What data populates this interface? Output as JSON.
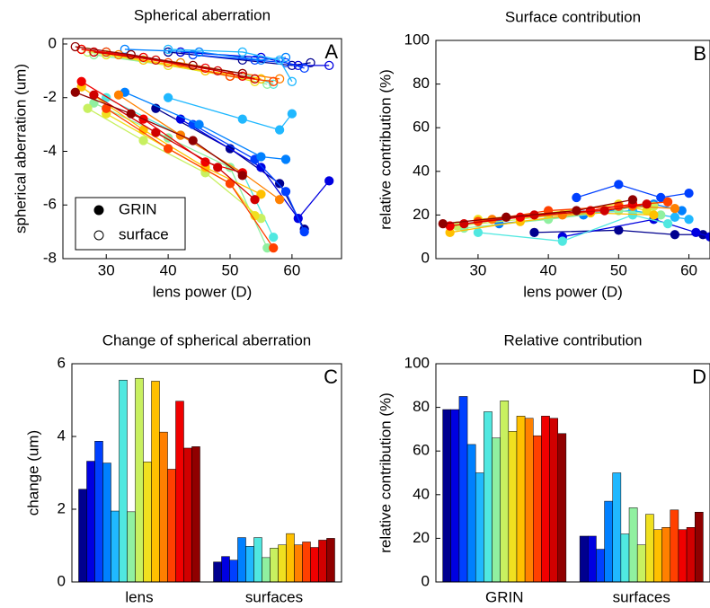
{
  "chart_data": [
    {
      "type": "line",
      "panel_label": "A",
      "title": "Spherical aberration",
      "xlabel": "lens power (D)",
      "ylabel": "spherical aberration (um)",
      "xlim": [
        23,
        68
      ],
      "xticks": [
        30,
        40,
        50,
        60
      ],
      "ylim": [
        -8,
        0.2
      ],
      "yticks": [
        -8,
        -6,
        -4,
        -2,
        0
      ],
      "legend": "lower left",
      "groups": [
        {
          "name": "GRIN",
          "marker": "filled",
          "series": [
            {
              "color": "#00008f",
              "x": [
                38,
                50,
                58,
                62
              ],
              "values": [
                -2.4,
                -3.9,
                -5.2,
                -6.9
              ]
            },
            {
              "color": "#0000e0",
              "x": [
                42,
                55,
                61,
                66
              ],
              "values": [
                -2.8,
                -4.6,
                -6.5,
                -5.1
              ]
            },
            {
              "color": "#0040ff",
              "x": [
                44,
                54,
                59,
                62
              ],
              "values": [
                -3.0,
                -4.3,
                -5.5,
                -7.0
              ]
            },
            {
              "color": "#0080ff",
              "x": [
                33,
                45,
                55,
                59
              ],
              "values": [
                -1.8,
                -3.0,
                -4.2,
                -4.3
              ]
            },
            {
              "color": "#20b8ff",
              "x": [
                40,
                52,
                58,
                60
              ],
              "values": [
                -2.0,
                -2.8,
                -3.2,
                -2.6
              ]
            },
            {
              "color": "#50e8e0",
              "x": [
                30,
                42,
                52,
                57
              ],
              "values": [
                -2.0,
                -3.4,
                -4.8,
                -7.2
              ]
            },
            {
              "color": "#90f0a0",
              "x": [
                28,
                40,
                50,
                56
              ],
              "values": [
                -2.2,
                -3.5,
                -4.6,
                -7.6
              ]
            },
            {
              "color": "#c8f060",
              "x": [
                27,
                36,
                46,
                55
              ],
              "values": [
                -2.4,
                -3.6,
                -4.8,
                -6.5
              ]
            },
            {
              "color": "#f0e020",
              "x": [
                30,
                40,
                50,
                54
              ],
              "values": [
                -2.6,
                -3.9,
                -5.2,
                -6.4
              ]
            },
            {
              "color": "#ffc000",
              "x": [
                26,
                36,
                46,
                55
              ],
              "values": [
                -1.6,
                -3.2,
                -4.6,
                -5.6
              ]
            },
            {
              "color": "#ff8000",
              "x": [
                32,
                42,
                52,
                58
              ],
              "values": [
                -1.9,
                -3.4,
                -4.8,
                -5.8
              ]
            },
            {
              "color": "#ff4000",
              "x": [
                30,
                40,
                50,
                57
              ],
              "values": [
                -2.4,
                -3.9,
                -5.2,
                -7.6
              ]
            },
            {
              "color": "#f00000",
              "x": [
                26,
                36,
                46,
                52
              ],
              "values": [
                -1.4,
                -2.8,
                -4.4,
                -4.8
              ]
            },
            {
              "color": "#d00000",
              "x": [
                28,
                38,
                48,
                54
              ],
              "values": [
                -1.9,
                -3.3,
                -4.6,
                -5.8
              ]
            },
            {
              "color": "#900000",
              "x": [
                25,
                34,
                44,
                52
              ],
              "values": [
                -1.8,
                -2.6,
                -3.6,
                -4.9
              ]
            }
          ]
        },
        {
          "name": "surface",
          "marker": "open",
          "series": [
            {
              "color": "#00008f",
              "x": [
                40,
                52,
                60,
                63
              ],
              "values": [
                -0.3,
                -0.6,
                -0.8,
                -0.7
              ]
            },
            {
              "color": "#0000e0",
              "x": [
                42,
                55,
                61,
                66
              ],
              "values": [
                -0.3,
                -0.5,
                -0.8,
                -0.8
              ]
            },
            {
              "color": "#0040ff",
              "x": [
                44,
                54,
                59,
                62
              ],
              "values": [
                -0.4,
                -0.6,
                -0.7,
                -0.9
              ]
            },
            {
              "color": "#0080ff",
              "x": [
                33,
                45,
                55,
                59
              ],
              "values": [
                -0.2,
                -0.3,
                -0.6,
                -0.5
              ]
            },
            {
              "color": "#20b8ff",
              "x": [
                40,
                52,
                58,
                60
              ],
              "values": [
                -0.2,
                -0.3,
                -0.6,
                -1.4
              ]
            },
            {
              "color": "#50e8e0",
              "x": [
                30,
                42,
                52,
                57
              ],
              "values": [
                -0.3,
                -0.7,
                -1.1,
                -1.5
              ]
            },
            {
              "color": "#90f0a0",
              "x": [
                28,
                40,
                50,
                56
              ],
              "values": [
                -0.4,
                -0.8,
                -1.2,
                -1.5
              ]
            },
            {
              "color": "#c8f060",
              "x": [
                27,
                36,
                46,
                55
              ],
              "values": [
                -0.3,
                -0.6,
                -1.0,
                -1.3
              ]
            },
            {
              "color": "#f0e020",
              "x": [
                30,
                40,
                50,
                54
              ],
              "values": [
                -0.4,
                -0.8,
                -1.2,
                -1.4
              ]
            },
            {
              "color": "#ffc000",
              "x": [
                26,
                36,
                46,
                55
              ],
              "values": [
                -0.2,
                -0.6,
                -1.0,
                -1.3
              ]
            },
            {
              "color": "#ff8000",
              "x": [
                32,
                42,
                52,
                58
              ],
              "values": [
                -0.4,
                -0.7,
                -1.1,
                -1.3
              ]
            },
            {
              "color": "#ff4000",
              "x": [
                30,
                40,
                50,
                57
              ],
              "values": [
                -0.3,
                -0.7,
                -1.2,
                -1.4
              ]
            },
            {
              "color": "#f00000",
              "x": [
                26,
                36,
                46,
                52
              ],
              "values": [
                -0.2,
                -0.5,
                -0.9,
                -1.2
              ]
            },
            {
              "color": "#d00000",
              "x": [
                28,
                38,
                48,
                54
              ],
              "values": [
                -0.3,
                -0.6,
                -1.0,
                -1.3
              ]
            },
            {
              "color": "#900000",
              "x": [
                25,
                34,
                44,
                52
              ],
              "values": [
                -0.1,
                -0.4,
                -0.8,
                -1.1
              ]
            }
          ]
        }
      ]
    },
    {
      "type": "line",
      "panel_label": "B",
      "title": "Surface contribution",
      "xlabel": "lens power (D)",
      "ylabel": "relative contribution (%)",
      "xlim": [
        24,
        63
      ],
      "xticks": [
        30,
        40,
        50,
        60
      ],
      "ylim": [
        0,
        100
      ],
      "yticks": [
        0,
        20,
        40,
        60,
        80,
        100
      ],
      "groups": [
        {
          "marker": "filled",
          "series": [
            {
              "color": "#00008f",
              "x": [
                38,
                50,
                58,
                62
              ],
              "values": [
                12,
                13,
                11,
                11
              ]
            },
            {
              "color": "#0000e0",
              "x": [
                42,
                55,
                61,
                63
              ],
              "values": [
                10,
                18,
                12,
                10
              ]
            },
            {
              "color": "#0040ff",
              "x": [
                44,
                50,
                56,
                60
              ],
              "values": [
                28,
                34,
                28,
                30
              ]
            },
            {
              "color": "#0080ff",
              "x": [
                33,
                45,
                55,
                59
              ],
              "values": [
                16,
                20,
                25,
                22
              ]
            },
            {
              "color": "#20b8ff",
              "x": [
                40,
                52,
                58,
                60
              ],
              "values": [
                20,
                22,
                19,
                18
              ]
            },
            {
              "color": "#50e8e0",
              "x": [
                30,
                42,
                52,
                57
              ],
              "values": [
                12,
                8,
                20,
                16
              ]
            },
            {
              "color": "#90f0a0",
              "x": [
                28,
                40,
                50,
                56
              ],
              "values": [
                14,
                18,
                22,
                20
              ]
            },
            {
              "color": "#c8f060",
              "x": [
                27,
                36,
                46,
                55
              ],
              "values": [
                15,
                18,
                22,
                24
              ]
            },
            {
              "color": "#f0e020",
              "x": [
                30,
                40,
                50,
                54
              ],
              "values": [
                18,
                21,
                25,
                22
              ]
            },
            {
              "color": "#ffc000",
              "x": [
                26,
                36,
                46,
                55
              ],
              "values": [
                12,
                17,
                21,
                20
              ]
            },
            {
              "color": "#ff8000",
              "x": [
                32,
                42,
                52,
                58
              ],
              "values": [
                18,
                20,
                24,
                23
              ]
            },
            {
              "color": "#ff4000",
              "x": [
                30,
                40,
                50,
                57
              ],
              "values": [
                17,
                22,
                24,
                26
              ]
            },
            {
              "color": "#f00000",
              "x": [
                26,
                36,
                46,
                52
              ],
              "values": [
                15,
                19,
                22,
                25
              ]
            },
            {
              "color": "#d00000",
              "x": [
                28,
                38,
                48,
                54
              ],
              "values": [
                16,
                20,
                22,
                25
              ]
            },
            {
              "color": "#900000",
              "x": [
                25,
                34,
                44,
                52
              ],
              "values": [
                16,
                19,
                22,
                27
              ]
            }
          ]
        }
      ]
    },
    {
      "type": "bar",
      "panel_label": "C",
      "title": "Change of spherical aberration",
      "ylabel": "change (um)",
      "categories": [
        "lens",
        "surfaces"
      ],
      "ylim": [
        0,
        6
      ],
      "yticks": [
        0,
        2,
        4,
        6
      ],
      "series": [
        {
          "color": "#00008f",
          "values": [
            2.55,
            0.55
          ]
        },
        {
          "color": "#0000e0",
          "values": [
            3.32,
            0.7
          ]
        },
        {
          "color": "#0040ff",
          "values": [
            3.87,
            0.6
          ]
        },
        {
          "color": "#0080ff",
          "values": [
            3.27,
            1.22
          ]
        },
        {
          "color": "#20b8ff",
          "values": [
            1.95,
            0.98
          ]
        },
        {
          "color": "#50e8e0",
          "values": [
            5.55,
            1.22
          ]
        },
        {
          "color": "#90f0a0",
          "values": [
            1.93,
            0.67
          ]
        },
        {
          "color": "#c8f060",
          "values": [
            5.6,
            0.93
          ]
        },
        {
          "color": "#f0e020",
          "values": [
            3.3,
            1.02
          ]
        },
        {
          "color": "#ffc000",
          "values": [
            5.52,
            1.33
          ]
        },
        {
          "color": "#ff8000",
          "values": [
            4.12,
            1.02
          ]
        },
        {
          "color": "#ff4000",
          "values": [
            3.1,
            1.1
          ]
        },
        {
          "color": "#f00000",
          "values": [
            4.97,
            0.95
          ]
        },
        {
          "color": "#d00000",
          "values": [
            3.68,
            1.15
          ]
        },
        {
          "color": "#900000",
          "values": [
            3.72,
            1.2
          ]
        }
      ]
    },
    {
      "type": "bar",
      "panel_label": "D",
      "title": "Relative contribution",
      "ylabel": "relative contribution (%)",
      "categories": [
        "GRIN",
        "surfaces"
      ],
      "ylim": [
        0,
        100
      ],
      "yticks": [
        0,
        20,
        40,
        60,
        80,
        100
      ],
      "series": [
        {
          "color": "#00008f",
          "values": [
            79,
            21
          ]
        },
        {
          "color": "#0000e0",
          "values": [
            79,
            21
          ]
        },
        {
          "color": "#0040ff",
          "values": [
            85,
            15
          ]
        },
        {
          "color": "#0080ff",
          "values": [
            63,
            37
          ]
        },
        {
          "color": "#20b8ff",
          "values": [
            50,
            50
          ]
        },
        {
          "color": "#50e8e0",
          "values": [
            78,
            22
          ]
        },
        {
          "color": "#90f0a0",
          "values": [
            66,
            34
          ]
        },
        {
          "color": "#c8f060",
          "values": [
            83,
            17
          ]
        },
        {
          "color": "#f0e020",
          "values": [
            69,
            31
          ]
        },
        {
          "color": "#ffc000",
          "values": [
            76,
            24
          ]
        },
        {
          "color": "#ff8000",
          "values": [
            75,
            25
          ]
        },
        {
          "color": "#ff4000",
          "values": [
            67,
            33
          ]
        },
        {
          "color": "#f00000",
          "values": [
            76,
            24
          ]
        },
        {
          "color": "#d00000",
          "values": [
            75,
            25
          ]
        },
        {
          "color": "#900000",
          "values": [
            68,
            32
          ]
        }
      ]
    }
  ]
}
